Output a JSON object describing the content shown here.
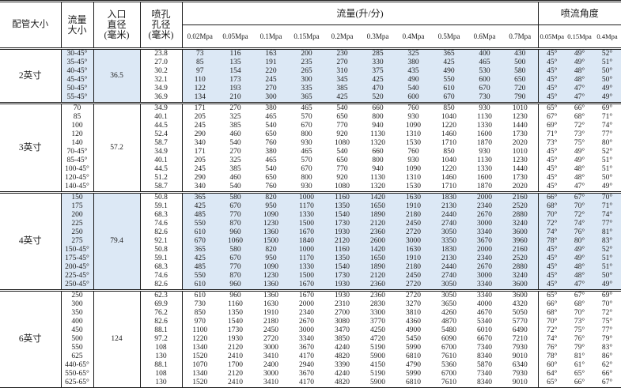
{
  "header": {
    "pipe_label": "配管大小",
    "flow_size_label": "流量\n大小",
    "inlet_label": "入口\n直径\n(毫米)",
    "orifice_label": "喷孔\n孔径\n(毫米)",
    "flow_group_label": "流量(升/分)",
    "angle_group_label": "喷流角度",
    "flow_pressures": [
      "0.02Mpa",
      "0.05Mpa",
      "0.1Mpa",
      "0.15Mpa",
      "0.2Mpa",
      "0.3Mpa",
      "0.4Mpa",
      "0.5Mpa",
      "0.6Mpa",
      "0.7Mpa"
    ],
    "angle_pressures": [
      "0.05Mpa",
      "0.15Mpa",
      "0.4Mpa"
    ]
  },
  "colors": {
    "shaded_row_bg": "#dce8f5",
    "line": "#1b1b1b"
  },
  "groups": [
    {
      "pipe": "2英寸",
      "inlet": "36.5",
      "shaded": true,
      "rows": [
        {
          "size": "30-45°",
          "orifice": "23.8",
          "flows": [
            73,
            116,
            163,
            200,
            230,
            285,
            325,
            365,
            400,
            430
          ],
          "angles": [
            "45°",
            "49°",
            "52°"
          ]
        },
        {
          "size": "35-45°",
          "orifice": "27.0",
          "flows": [
            85,
            135,
            191,
            235,
            270,
            330,
            380,
            425,
            465,
            500
          ],
          "angles": [
            "45°",
            "49°",
            "51°"
          ]
        },
        {
          "size": "40-45°",
          "orifice": "30.2",
          "flows": [
            97,
            154,
            220,
            265,
            310,
            375,
            435,
            490,
            530,
            580
          ],
          "angles": [
            "45°",
            "48°",
            "50°"
          ]
        },
        {
          "size": "45-45°",
          "orifice": "32.1",
          "flows": [
            110,
            173,
            245,
            300,
            345,
            425,
            490,
            550,
            600,
            650
          ],
          "angles": [
            "45°",
            "48°",
            "50°"
          ]
        },
        {
          "size": "50-45°",
          "orifice": "34.9",
          "flows": [
            122,
            193,
            270,
            335,
            385,
            470,
            540,
            610,
            670,
            720
          ],
          "angles": [
            "45°",
            "47°",
            "49°"
          ]
        },
        {
          "size": "55-45°",
          "orifice": "36.9",
          "flows": [
            134,
            210,
            300,
            365,
            425,
            520,
            600,
            670,
            730,
            790
          ],
          "angles": [
            "45°",
            "47°",
            "49°"
          ]
        }
      ]
    },
    {
      "pipe": "3英寸",
      "inlet": "57.2",
      "shaded": false,
      "rows": [
        {
          "size": "70",
          "orifice": "34.9",
          "flows": [
            171,
            270,
            380,
            465,
            540,
            660,
            760,
            850,
            930,
            1010
          ],
          "angles": [
            "65°",
            "66°",
            "69°"
          ]
        },
        {
          "size": "85",
          "orifice": "40.1",
          "flows": [
            205,
            325,
            465,
            570,
            650,
            800,
            930,
            1040,
            1130,
            1230
          ],
          "angles": [
            "67°",
            "68°",
            "71°"
          ]
        },
        {
          "size": "100",
          "orifice": "44.5",
          "flows": [
            245,
            385,
            540,
            670,
            770,
            940,
            1090,
            1220,
            1330,
            1440
          ],
          "angles": [
            "69°",
            "72°",
            "74°"
          ]
        },
        {
          "size": "120",
          "orifice": "52.4",
          "flows": [
            290,
            460,
            650,
            800,
            920,
            1130,
            1310,
            1460,
            1600,
            1730
          ],
          "angles": [
            "71°",
            "73°",
            "77°"
          ]
        },
        {
          "size": "140",
          "orifice": "58.7",
          "flows": [
            340,
            540,
            760,
            930,
            1080,
            1320,
            1530,
            1710,
            1870,
            2020
          ],
          "angles": [
            "73°",
            "75°",
            "80°"
          ]
        },
        {
          "size": "70-45°",
          "orifice": "34.9",
          "flows": [
            171,
            270,
            380,
            465,
            540,
            660,
            760,
            850,
            930,
            1010
          ],
          "angles": [
            "45°",
            "49°",
            "52°"
          ]
        },
        {
          "size": "85-45°",
          "orifice": "40.1",
          "flows": [
            205,
            325,
            465,
            570,
            650,
            800,
            930,
            1040,
            1130,
            1230
          ],
          "angles": [
            "45°",
            "49°",
            "51°"
          ]
        },
        {
          "size": "100-45°",
          "orifice": "44.5",
          "flows": [
            245,
            385,
            540,
            670,
            770,
            940,
            1090,
            1220,
            1330,
            1440
          ],
          "angles": [
            "45°",
            "48°",
            "51°"
          ]
        },
        {
          "size": "120-45°",
          "orifice": "51.2",
          "flows": [
            290,
            460,
            650,
            800,
            920,
            1130,
            1310,
            1460,
            1600,
            1730
          ],
          "angles": [
            "45°",
            "48°",
            "50°"
          ]
        },
        {
          "size": "140-45°",
          "orifice": "58.7",
          "flows": [
            340,
            540,
            760,
            930,
            1080,
            1320,
            1530,
            1710,
            1870,
            2020
          ],
          "angles": [
            "45°",
            "47°",
            "49°"
          ]
        }
      ]
    },
    {
      "pipe": "4英寸",
      "inlet": "79.4",
      "shaded": true,
      "rows": [
        {
          "size": "150",
          "orifice": "50.8",
          "flows": [
            365,
            580,
            820,
            1000,
            1160,
            1420,
            1630,
            1830,
            2000,
            2160
          ],
          "angles": [
            "66°",
            "67°",
            "70°"
          ]
        },
        {
          "size": "175",
          "orifice": "59.1",
          "flows": [
            425,
            670,
            950,
            1170,
            1350,
            1650,
            1910,
            2130,
            2340,
            2520
          ],
          "angles": [
            "68°",
            "70°",
            "71°"
          ]
        },
        {
          "size": "200",
          "orifice": "68.3",
          "flows": [
            485,
            770,
            1090,
            1330,
            1540,
            1890,
            2180,
            2440,
            2670,
            2880
          ],
          "angles": [
            "70°",
            "72°",
            "74°"
          ]
        },
        {
          "size": "225",
          "orifice": "74.6",
          "flows": [
            550,
            870,
            1230,
            1500,
            1730,
            2120,
            2450,
            2740,
            3000,
            3240
          ],
          "angles": [
            "72°",
            "74°",
            "77°"
          ]
        },
        {
          "size": "250",
          "orifice": "82.6",
          "flows": [
            610,
            960,
            1360,
            1670,
            1930,
            2360,
            2720,
            3050,
            3340,
            3600
          ],
          "angles": [
            "74°",
            "76°",
            "81°"
          ]
        },
        {
          "size": "275",
          "orifice": "92.1",
          "flows": [
            670,
            1060,
            1500,
            1840,
            2120,
            2600,
            3000,
            3350,
            3670,
            3960
          ],
          "angles": [
            "78°",
            "80°",
            "83°"
          ]
        },
        {
          "size": "150-45°",
          "orifice": "50.8",
          "flows": [
            365,
            580,
            820,
            1000,
            1160,
            1420,
            1630,
            1830,
            2000,
            2160
          ],
          "angles": [
            "45°",
            "49°",
            "52°"
          ]
        },
        {
          "size": "175-45°",
          "orifice": "59.1",
          "flows": [
            425,
            670,
            950,
            1170,
            1350,
            1650,
            1910,
            2130,
            2340,
            2520
          ],
          "angles": [
            "45°",
            "49°",
            "51°"
          ]
        },
        {
          "size": "200-45°",
          "orifice": "68.3",
          "flows": [
            485,
            770,
            1090,
            1330,
            1540,
            1890,
            2180,
            2440,
            2670,
            2880
          ],
          "angles": [
            "45°",
            "48°",
            "51°"
          ]
        },
        {
          "size": "225-45°",
          "orifice": "74.6",
          "flows": [
            550,
            870,
            1230,
            1500,
            1730,
            2120,
            2450,
            2740,
            3000,
            3240
          ],
          "angles": [
            "45°",
            "48°",
            "50°"
          ]
        },
        {
          "size": "250-45°",
          "orifice": "82.6",
          "flows": [
            610,
            960,
            1360,
            1670,
            1930,
            2360,
            2720,
            3050,
            3340,
            3600
          ],
          "angles": [
            "45°",
            "47°",
            "49°"
          ]
        }
      ]
    },
    {
      "pipe": "6英寸",
      "inlet": "124",
      "shaded": false,
      "rows": [
        {
          "size": "250",
          "orifice": "62.3",
          "flows": [
            610,
            960,
            1360,
            1670,
            1930,
            2360,
            2720,
            3050,
            3340,
            3600
          ],
          "angles": [
            "65°",
            "67°",
            "69°"
          ]
        },
        {
          "size": "300",
          "orifice": "69.9",
          "flows": [
            730,
            1160,
            1630,
            2000,
            2310,
            2830,
            3270,
            3650,
            4000,
            4320
          ],
          "angles": [
            "66°",
            "68°",
            "70°"
          ]
        },
        {
          "size": "350",
          "orifice": "76.2",
          "flows": [
            850,
            1350,
            1910,
            2340,
            2700,
            3300,
            3810,
            4260,
            4670,
            5050
          ],
          "angles": [
            "68°",
            "70°",
            "72°"
          ]
        },
        {
          "size": "400",
          "orifice": "82.6",
          "flows": [
            970,
            1540,
            2180,
            2670,
            3080,
            3770,
            4360,
            4870,
            5340,
            5770
          ],
          "angles": [
            "70°",
            "73°",
            "75°"
          ]
        },
        {
          "size": "450",
          "orifice": "88.1",
          "flows": [
            1100,
            1730,
            2450,
            3000,
            3470,
            4250,
            4900,
            5480,
            6010,
            6490
          ],
          "angles": [
            "72°",
            "75°",
            "77°"
          ]
        },
        {
          "size": "500",
          "orifice": "97.2",
          "flows": [
            1220,
            1930,
            2720,
            3340,
            3850,
            4720,
            5450,
            6090,
            6670,
            7210
          ],
          "angles": [
            "74°",
            "76°",
            "79°"
          ]
        },
        {
          "size": "550",
          "orifice": "108",
          "flows": [
            1340,
            2120,
            3000,
            3670,
            4240,
            5190,
            5990,
            6700,
            7340,
            7930
          ],
          "angles": [
            "76°",
            "79°",
            "83°"
          ]
        },
        {
          "size": "625",
          "orifice": "130",
          "flows": [
            1520,
            2410,
            3410,
            4170,
            4820,
            5900,
            6810,
            7610,
            8340,
            9010
          ],
          "angles": [
            "78°",
            "81°",
            "86°"
          ]
        },
        {
          "size": "440-65°",
          "orifice": "88.1",
          "flows": [
            1070,
            1700,
            2400,
            2940,
            3390,
            4150,
            4790,
            5360,
            5870,
            6340
          ],
          "angles": [
            "60°",
            "61°",
            "62°"
          ]
        },
        {
          "size": "550-65°",
          "orifice": "108",
          "flows": [
            1340,
            2120,
            3000,
            3670,
            4240,
            5190,
            5990,
            6700,
            7340,
            7930
          ],
          "angles": [
            "64°",
            "65°",
            "66°"
          ]
        },
        {
          "size": "625-65°",
          "orifice": "130",
          "flows": [
            1520,
            2410,
            3410,
            4170,
            4820,
            5900,
            6810,
            7610,
            8340,
            9010
          ],
          "angles": [
            "65°",
            "66°",
            "67°"
          ]
        }
      ]
    }
  ]
}
